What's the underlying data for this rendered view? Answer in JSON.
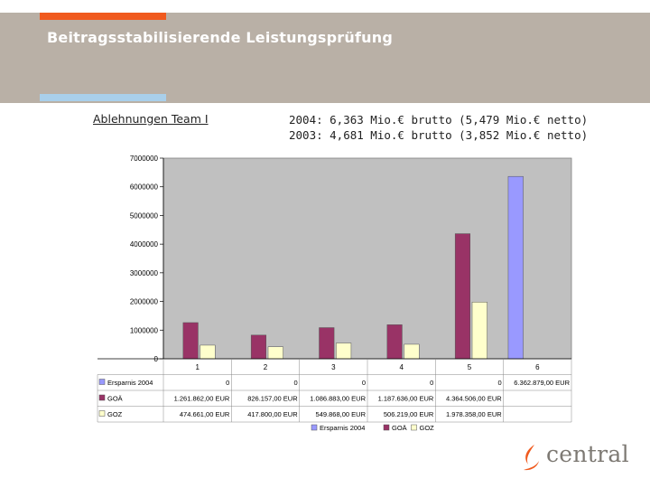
{
  "slide": {
    "title": "Beitragsstabilisierende Leistungsprüfung",
    "sub_label": "Ablehnungen Team I",
    "stats_line1": "2004: 6,363 Mio.€ brutto (5,479 Mio.€ netto)",
    "stats_line2": "2003: 4,681 Mio.€ brutto (3,852 Mio.€ netto)"
  },
  "logo": {
    "text": "central",
    "icon": "central-flame-icon"
  },
  "colors": {
    "header_band": "#b9b0a6",
    "accent_orange": "#f05a1e",
    "accent_blue": "#a9cfea",
    "plot_bg": "#c0c0c0",
    "series_ersparnis": "#9999ff",
    "series_goae": "#993366",
    "series_goz": "#ffffcc"
  },
  "chart_data": {
    "type": "bar",
    "categories": [
      "1",
      "2",
      "3",
      "4",
      "5",
      "6"
    ],
    "yticks": [
      "7000000",
      "6000000",
      "5000000",
      "4000000",
      "3000000",
      "2000000",
      "1000000",
      "0"
    ],
    "ylim": [
      0,
      7000000
    ],
    "series": [
      {
        "name": "Ersparnis 2004",
        "legend_label": "Ersparnis 2004",
        "values": [
          0,
          0,
          0,
          0,
          0,
          6362879
        ],
        "table_values": [
          "0",
          "0",
          "0",
          "0",
          "0",
          "6.362.879,00 EUR"
        ]
      },
      {
        "name": "GOÄ",
        "legend_label": "GOÄ",
        "values": [
          1261862,
          826157,
          1086883,
          1187636,
          4364506,
          0
        ],
        "table_values": [
          "1.261.862,00 EUR",
          "826.157,00 EUR",
          "1.086.883,00 EUR",
          "1.187.636,00 EUR",
          "4.364.506,00 EUR",
          ""
        ]
      },
      {
        "name": "GOZ",
        "legend_label": "GOZ",
        "values": [
          474661,
          417800,
          549868,
          506219,
          1978358,
          0
        ],
        "table_values": [
          "474.661,00 EUR",
          "417.800,00 EUR",
          "549.868,00 EUR",
          "506.219,00 EUR",
          "1.978.358,00 EUR",
          ""
        ]
      }
    ],
    "legend_items": [
      "Ersparnis 2004",
      "GOÄ",
      "GOZ"
    ],
    "grid": false,
    "legend_position": "bottom"
  }
}
